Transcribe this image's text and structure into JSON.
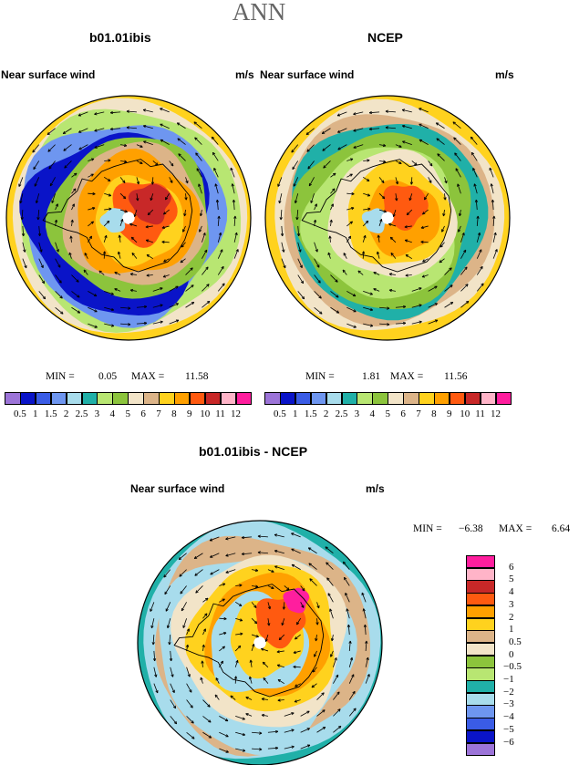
{
  "title": "ANN",
  "panels": [
    {
      "id": "model",
      "title": "b01.01ibis",
      "field_label": "Near surface wind",
      "units": "m/s",
      "min_label": "MIN =",
      "min_value": "0.05",
      "max_label": "MAX =",
      "max_value": "11.58",
      "min": 0.05,
      "max": 11.58
    },
    {
      "id": "obs",
      "title": "NCEP",
      "field_label": "Near surface wind",
      "units": "m/s",
      "min_label": "MIN =",
      "min_value": "1.81",
      "max_label": "MAX =",
      "max_value": "11.56",
      "min": 1.81,
      "max": 11.56
    },
    {
      "id": "diff",
      "title": "b01.01ibis - NCEP",
      "field_label": "Near surface wind",
      "units": "m/s",
      "min_label": "MIN =",
      "min_value": "−6.38",
      "max_label": "MAX =",
      "max_value": "6.64",
      "min": -6.38,
      "max": 6.64
    }
  ],
  "wind_colorbar": {
    "labels": [
      "0.5",
      "1",
      "1.5",
      "2",
      "2.5",
      "3",
      "4",
      "5",
      "6",
      "7",
      "8",
      "9",
      "10",
      "11",
      "12"
    ],
    "colors": [
      "#9c74d8",
      "#0a14c8",
      "#3a5ce6",
      "#6e96f0",
      "#a8dcec",
      "#20b0a8",
      "#b8e672",
      "#8cc43c",
      "#f2e4c8",
      "#dcb488",
      "#ffd21e",
      "#ffa000",
      "#ff5a10",
      "#c82828",
      "#ffb4c8",
      "#ff1e9e"
    ]
  },
  "diff_colorbar": {
    "labels": [
      "6",
      "5",
      "4",
      "3",
      "2",
      "1",
      "0.5",
      "0",
      "−0.5",
      "−1",
      "−2",
      "−3",
      "−4",
      "−5",
      "−6"
    ],
    "colors": [
      "#ff1e9e",
      "#ffb4c8",
      "#c82828",
      "#ff5a10",
      "#ffa000",
      "#ffd21e",
      "#dcb488",
      "#f2e4c8",
      "#8cc43c",
      "#b8e672",
      "#20b0a8",
      "#a8dcec",
      "#6e96f0",
      "#3a5ce6",
      "#0a14c8",
      "#9c74d8"
    ]
  }
}
